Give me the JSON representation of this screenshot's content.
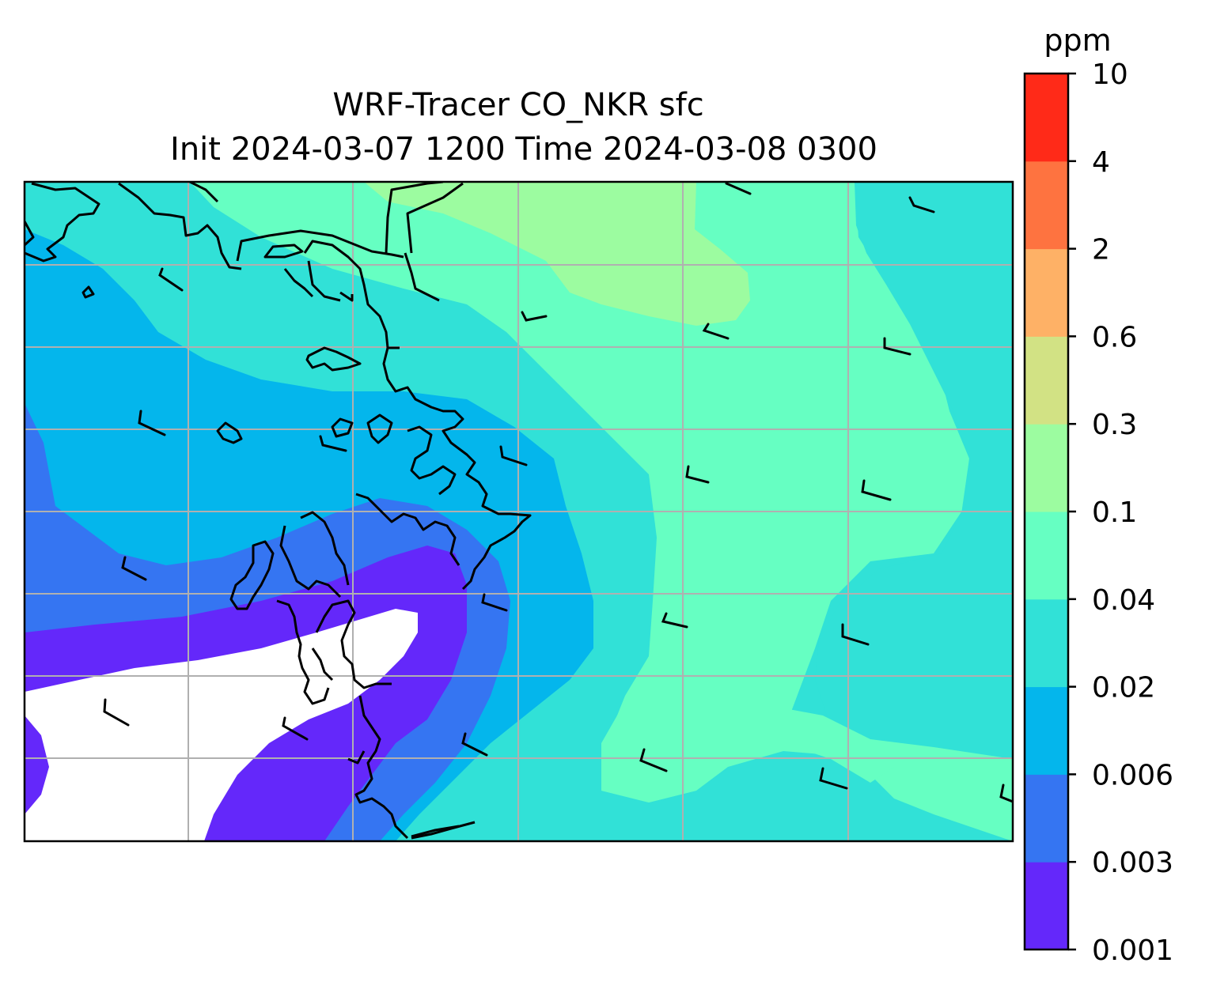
{
  "title": {
    "line1": "WRF-Tracer CO_NKR sfc",
    "line2": "Init 2024-03-07 1200 Time 2024-03-08 0300"
  },
  "colorbar": {
    "unit": "ppm",
    "levels": [
      "0.001",
      "0.003",
      "0.006",
      "0.02",
      "0.04",
      "0.1",
      "0.3",
      "0.6",
      "2",
      "4",
      "10"
    ],
    "colors": [
      "#6428fa",
      "#3575f2",
      "#04b6ec",
      "#31e1d7",
      "#66ffc2",
      "#9cfca0",
      "#d2e284",
      "#feb166",
      "#fe7340",
      "#ff2a18"
    ]
  },
  "map": {
    "field": "CO_NKR",
    "level": "sfc",
    "grid": "on",
    "features": [
      "coastline",
      "wind-barbs",
      "filled-contours"
    ]
  }
}
